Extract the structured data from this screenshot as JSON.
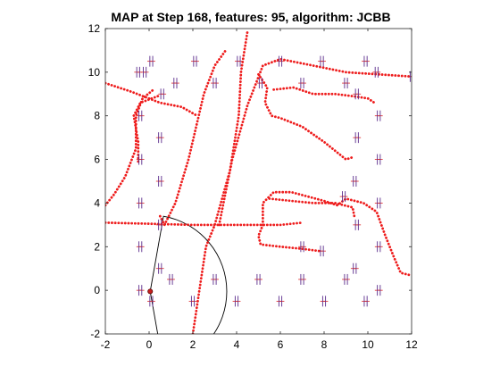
{
  "chart_data": {
    "type": "scatter",
    "title": "MAP at Step 168, features: 95, algorithm: JCBB",
    "xlabel": "",
    "ylabel": "",
    "xlim": [
      -2,
      12
    ],
    "ylim": [
      -2,
      12
    ],
    "x_ticks": [
      -2,
      0,
      2,
      4,
      6,
      8,
      10,
      12
    ],
    "y_ticks": [
      -2,
      0,
      2,
      4,
      6,
      8,
      10,
      12
    ],
    "colors": {
      "trajectory": "#ee1c1c",
      "landmark": "#5b2c8c",
      "sensor": "#000000",
      "robot": "#c81e1e"
    },
    "robot_pose": {
      "x": 0.05,
      "y": -0.05
    },
    "sensor_fan": {
      "origin": [
        0.05,
        -0.05
      ],
      "radius": 3.5,
      "heading_deg": 0,
      "half_angle_deg": 80
    },
    "landmarks": [
      [
        -0.5,
        10.0
      ],
      [
        -0.2,
        10.0
      ],
      [
        0.1,
        10.5
      ],
      [
        1.2,
        9.5
      ],
      [
        2.1,
        10.5
      ],
      [
        3.0,
        9.5
      ],
      [
        4.1,
        10.5
      ],
      [
        5.1,
        9.5
      ],
      [
        6.0,
        10.5
      ],
      [
        7.0,
        9.5
      ],
      [
        7.9,
        10.5
      ],
      [
        9.0,
        9.5
      ],
      [
        9.9,
        10.5
      ],
      [
        10.4,
        10.0
      ],
      [
        12.0,
        9.8
      ],
      [
        -0.4,
        8.0
      ],
      [
        0.6,
        9.0
      ],
      [
        9.5,
        9.0
      ],
      [
        10.5,
        8.0
      ],
      [
        0.5,
        7.0
      ],
      [
        9.5,
        7.0
      ],
      [
        -0.4,
        6.0
      ],
      [
        10.5,
        6.0
      ],
      [
        0.5,
        5.0
      ],
      [
        9.4,
        5.0
      ],
      [
        -0.4,
        4.0
      ],
      [
        8.9,
        4.3
      ],
      [
        10.5,
        4.0
      ],
      [
        0.5,
        3.0
      ],
      [
        9.5,
        3.0
      ],
      [
        -0.4,
        2.0
      ],
      [
        7.0,
        2.0
      ],
      [
        7.9,
        1.8
      ],
      [
        10.5,
        2.0
      ],
      [
        0.5,
        1.0
      ],
      [
        9.4,
        1.0
      ],
      [
        -0.4,
        0.0
      ],
      [
        1.0,
        0.5
      ],
      [
        2.0,
        -0.5
      ],
      [
        3.0,
        0.5
      ],
      [
        4.0,
        -0.5
      ],
      [
        5.0,
        0.5
      ],
      [
        6.0,
        -0.5
      ],
      [
        7.0,
        0.5
      ],
      [
        8.0,
        -0.5
      ],
      [
        9.0,
        0.5
      ],
      [
        9.9,
        -0.5
      ],
      [
        10.5,
        0.0
      ],
      [
        0.1,
        -0.5
      ]
    ],
    "trajectories": [
      [
        [
          -2.0,
          3.9
        ],
        [
          -1.6,
          4.4
        ],
        [
          -1.1,
          5.2
        ],
        [
          -0.6,
          6.5
        ],
        [
          -0.6,
          8.0
        ],
        [
          -0.3,
          8.8
        ],
        [
          0.2,
          9.2
        ]
      ],
      [
        [
          -2.0,
          9.5
        ],
        [
          -0.8,
          9.1
        ],
        [
          0.5,
          8.6
        ],
        [
          1.5,
          8.4
        ],
        [
          2.2,
          8.0
        ]
      ],
      [
        [
          0.4,
          8.9
        ],
        [
          -0.4,
          8.6
        ],
        [
          -0.7,
          8.0
        ],
        [
          -0.5,
          6.8
        ],
        [
          -0.5,
          5.8
        ]
      ],
      [
        [
          0.5,
          3.4
        ],
        [
          0.7,
          3.0
        ],
        [
          1.2,
          4.0
        ],
        [
          1.8,
          6.0
        ],
        [
          2.5,
          9.0
        ],
        [
          3.0,
          10.3
        ],
        [
          3.5,
          11.0
        ]
      ],
      [
        [
          -2.0,
          3.1
        ],
        [
          0.0,
          3.05
        ],
        [
          2.0,
          3.0
        ],
        [
          4.0,
          3.0
        ],
        [
          6.0,
          3.0
        ],
        [
          7.0,
          3.1
        ]
      ],
      [
        [
          2.0,
          -2.0
        ],
        [
          2.3,
          0.0
        ],
        [
          2.6,
          2.0
        ],
        [
          3.0,
          3.0
        ],
        [
          3.7,
          5.5
        ],
        [
          4.1,
          8.0
        ],
        [
          4.2,
          10.0
        ],
        [
          4.5,
          11.9
        ]
      ],
      [
        [
          3.2,
          3.0
        ],
        [
          3.8,
          6.0
        ],
        [
          4.5,
          8.5
        ],
        [
          5.2,
          10.3
        ],
        [
          6.0,
          10.6
        ],
        [
          7.5,
          10.3
        ],
        [
          9.0,
          10.0
        ],
        [
          10.5,
          9.9
        ],
        [
          12.0,
          9.8
        ]
      ],
      [
        [
          5.0,
          9.9
        ],
        [
          5.4,
          9.3
        ],
        [
          5.3,
          8.6
        ],
        [
          5.6,
          8.0
        ],
        [
          6.0,
          7.9
        ],
        [
          7.0,
          7.5
        ],
        [
          8.0,
          6.8
        ],
        [
          9.0,
          6.0
        ],
        [
          9.3,
          6.1
        ]
      ],
      [
        [
          5.7,
          9.2
        ],
        [
          6.6,
          9.3
        ],
        [
          7.5,
          9.0
        ],
        [
          8.5,
          9.0
        ],
        [
          9.3,
          8.9
        ],
        [
          10.0,
          8.8
        ],
        [
          10.3,
          8.6
        ]
      ],
      [
        [
          5.2,
          3.0
        ],
        [
          5.0,
          2.5
        ],
        [
          5.1,
          2.1
        ],
        [
          6.0,
          2.0
        ],
        [
          7.0,
          1.9
        ],
        [
          7.8,
          1.8
        ]
      ],
      [
        [
          5.2,
          3.0
        ],
        [
          5.2,
          4.0
        ],
        [
          5.7,
          4.5
        ],
        [
          6.5,
          4.5
        ],
        [
          8.0,
          4.1
        ],
        [
          8.6,
          3.9
        ],
        [
          9.0,
          4.2
        ],
        [
          9.8,
          4.0
        ],
        [
          10.4,
          3.6
        ],
        [
          10.8,
          2.5
        ],
        [
          11.2,
          1.5
        ],
        [
          11.5,
          0.8
        ],
        [
          11.9,
          0.7
        ]
      ],
      [
        [
          5.5,
          4.2
        ],
        [
          6.5,
          4.1
        ],
        [
          7.5,
          4.0
        ],
        [
          8.5,
          4.0
        ],
        [
          9.3,
          3.8
        ],
        [
          9.4,
          3.3
        ]
      ]
    ]
  }
}
